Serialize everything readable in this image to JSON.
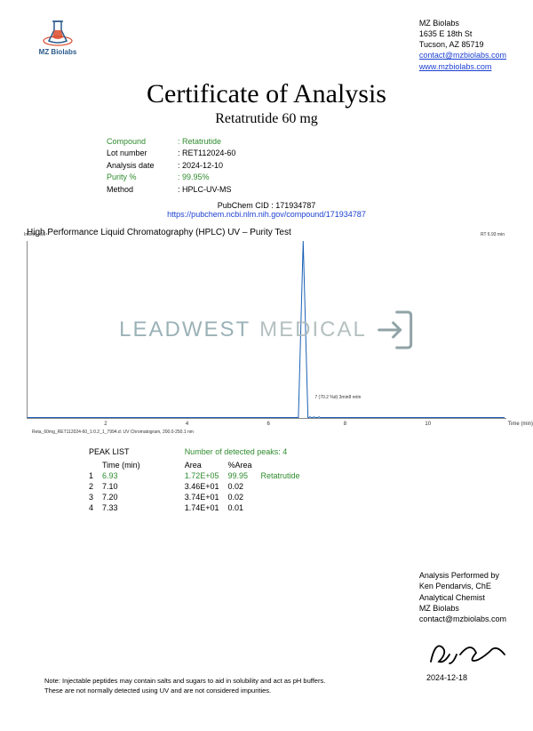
{
  "company": {
    "name": "MZ Biolabs",
    "address1": "1635 E 18th St",
    "address2": "Tucson, AZ 85719",
    "email": "contact@mzbiolabs.com",
    "website": "www.mzbiolabs.com",
    "logo_label": "MZ Biolabs",
    "logo_colors": {
      "flask_outline": "#2b5b8c",
      "flask_fill": "#d94a2b",
      "ring": "#d94a2b"
    }
  },
  "document": {
    "title": "Certificate of Analysis",
    "subtitle": "Retatrutide 60 mg"
  },
  "meta": {
    "compound_label": "Compound",
    "compound_value": "Retatrutide",
    "lot_label": "Lot number",
    "lot_value": "RET112024-60",
    "date_label": "Analysis date",
    "date_value": "2024-12-10",
    "purity_label": "Purity %",
    "purity_value": "99.95%",
    "method_label": "Method",
    "method_value": "HPLC-UV-MS"
  },
  "pubchem": {
    "cid_label": "PubChem CID : 171934787",
    "link_text": "https://pubchem.ncbi.nlm.nih.gov/compound/171934787"
  },
  "hplc": {
    "section_title": "High Performance Liquid Chromatography (HPLC) UV – Purity Test",
    "y_axis_top_note": "Intens.\nx10⁴",
    "x_axis_label": "Time (min)",
    "x_ticks": [
      2,
      4,
      6,
      8,
      10
    ],
    "peak_label_rt": "RT 6.93 min",
    "peak_small_note": "7 (70.2 %d) 3min8 retin",
    "file_note": "Reta_60mg_RET112024-60_1:0.2_1_7994.d: UV Chromatogram, 200.0-250.1 nm",
    "watermark_1": "LEADWEST",
    "watermark_2": "MEDICAL",
    "chromatogram": {
      "type": "line",
      "xlim": [
        0,
        12
      ],
      "ylim": [
        0,
        8
      ],
      "baseline_y": 0.02,
      "main_peak": {
        "x": 6.93,
        "height": 8.0
      },
      "minor_peaks": [
        {
          "x": 7.1,
          "height": 0.05
        },
        {
          "x": 7.2,
          "height": 0.05
        },
        {
          "x": 7.33,
          "height": 0.05
        }
      ],
      "line_color": "#1a5fb4",
      "line_width": 1
    }
  },
  "peaks": {
    "list_title": "PEAK LIST",
    "time_header": "Time (min)",
    "count_title": "Number of detected peaks: 4",
    "area_header": "Area",
    "pctarea_header": "%Area",
    "rows": [
      {
        "n": "1",
        "time": "6.93",
        "area": "1.72E+05",
        "pct": "99.95",
        "label": "Retatrutide",
        "highlight": true
      },
      {
        "n": "2",
        "time": "7.10",
        "area": "3.46E+01",
        "pct": "0.02",
        "label": "",
        "highlight": false
      },
      {
        "n": "3",
        "time": "7.20",
        "area": "3.74E+01",
        "pct": "0.02",
        "label": "",
        "highlight": false
      },
      {
        "n": "4",
        "time": "7.33",
        "area": "1.74E+01",
        "pct": "0.01",
        "label": "",
        "highlight": false
      }
    ]
  },
  "analyst": {
    "line1": "Analysis Performed by",
    "line2": "Ken Pendarvis, ChE",
    "line3": "Analytical Chemist",
    "line4": "MZ Biolabs",
    "line5": "contact@mzbiolabs.com",
    "sign_date": "2024-12-18"
  },
  "note": {
    "line1": "Note: Injectable peptides may contain salts and sugars to aid in solubility and act as pH buffers.",
    "line2": "These are not normally detected using UV and are not considered impurities."
  },
  "colors": {
    "green": "#2e8b2e",
    "link": "#1a3fd1",
    "watermark": "#8aa5ab"
  }
}
